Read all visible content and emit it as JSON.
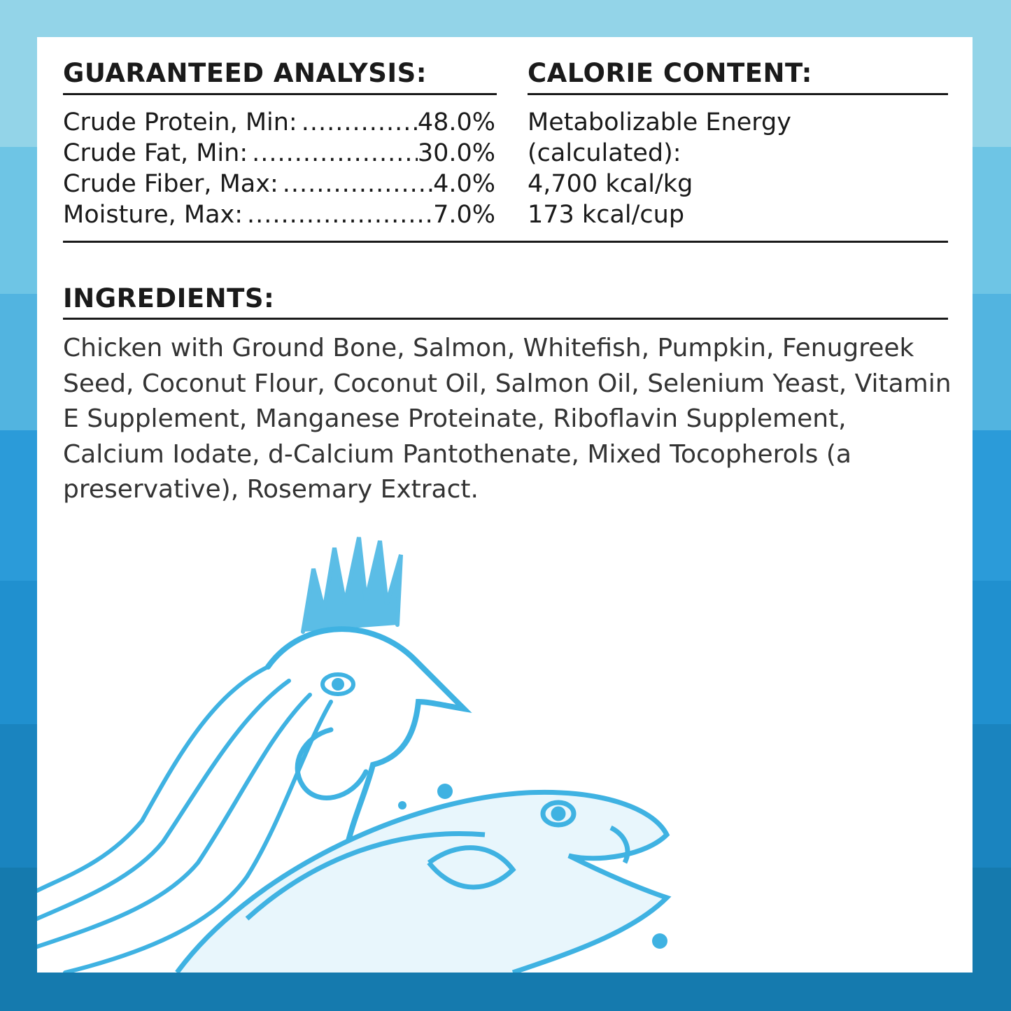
{
  "guaranteed_analysis": {
    "title": "GUARANTEED ANALYSIS:",
    "rows": [
      {
        "label": "Crude Protein, Min:",
        "value": "48.0%"
      },
      {
        "label": "Crude Fat, Min:",
        "value": "30.0%"
      },
      {
        "label": "Crude Fiber, Max:",
        "value": "4.0%"
      },
      {
        "label": "Moisture, Max:",
        "value": "7.0%"
      }
    ]
  },
  "calorie_content": {
    "title": "CALORIE CONTENT:",
    "lines": [
      "Metabolizable Energy",
      "(calculated):",
      "4,700 kcal/kg",
      "173 kcal/cup"
    ]
  },
  "ingredients": {
    "title": "INGREDIENTS:",
    "text": "Chicken with Ground Bone, Salmon, Whitefish, Pumpkin, Fenugreek Seed, Coconut Flour, Coconut Oil, Salmon Oil, Selenium Yeast, Vitamin E Supplement, Manganese Proteinate, Riboflavin Supplement, Calcium Iodate, d-Calcium Pantothenate, Mixed Tocopherols (a preservative), Rosemary Extract."
  },
  "colors": {
    "illustration": "#3fb2e2",
    "ink": "#1a1a1a"
  },
  "illustration": {
    "icons": [
      "chicken-illustration",
      "salmon-illustration"
    ]
  }
}
